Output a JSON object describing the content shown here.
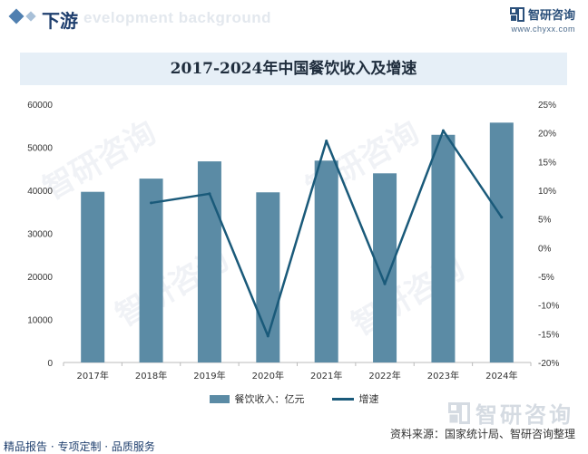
{
  "header": {
    "section_title": "下游",
    "section_bg_text": "evelopment background",
    "brand_name": "智研咨询",
    "brand_url": "www.chyxx.com"
  },
  "watermark_text": "智研咨询",
  "chart_data": {
    "type": "bar",
    "title": "2017-2024年中国餐饮收入及增速",
    "categories": [
      "2017年",
      "2018年",
      "2019年",
      "2020年",
      "2021年",
      "2022年",
      "2023年",
      "2024年"
    ],
    "series": [
      {
        "name": "餐饮收入：亿元",
        "type": "bar",
        "axis": "left",
        "values": [
          39644,
          42716,
          46721,
          39527,
          46895,
          43941,
          52890,
          55718
        ]
      },
      {
        "name": "增速",
        "type": "line",
        "axis": "right",
        "values": [
          null,
          7.8,
          9.4,
          -15.4,
          18.6,
          -6.3,
          20.4,
          5.3
        ]
      }
    ],
    "y_left": {
      "ticks": [
        "0",
        "10000",
        "20000",
        "30000",
        "40000",
        "50000",
        "60000"
      ],
      "ylim": [
        0,
        60000
      ]
    },
    "y_right": {
      "ticks": [
        "25%",
        "20%",
        "15%",
        "10%",
        "5%",
        "0%",
        "-5%",
        "-10%",
        "-15%",
        "-20%"
      ],
      "ylim": [
        -20,
        25
      ]
    },
    "colors": {
      "bar": "#5b8ba5",
      "line": "#1a5a7a"
    },
    "legend_position": "bottom"
  },
  "source_text": "资料来源：国家统计局、智研咨询整理",
  "footer_text": "精品报告 · 专项定制 · 品质服务"
}
